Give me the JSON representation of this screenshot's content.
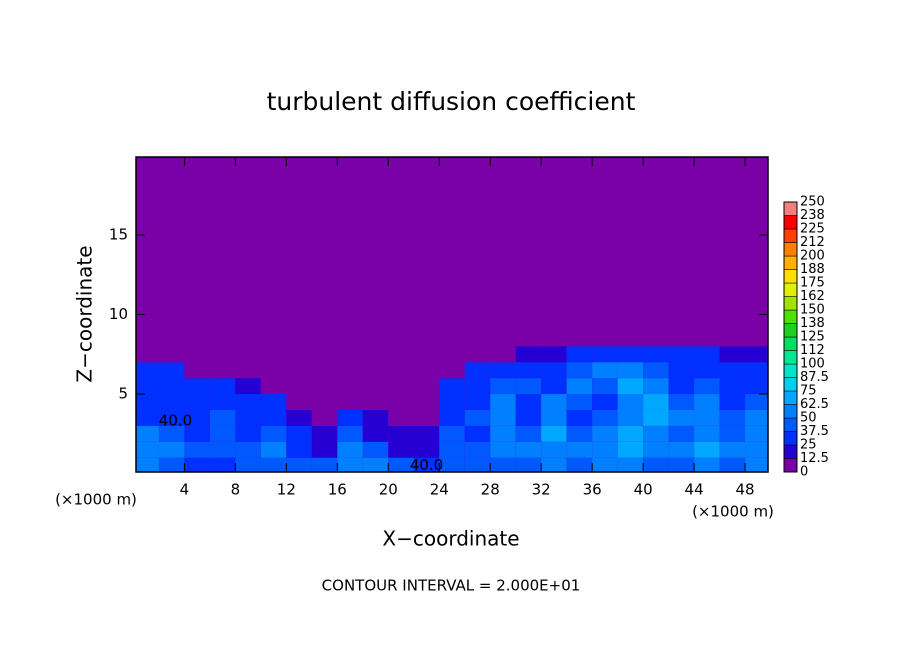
{
  "chart_data": {
    "type": "contour",
    "title": "turbulent diffusion coefficient",
    "xlabel": "X−coordinate",
    "ylabel": "Z−coordinate",
    "x_unit_label": "(×1000 m)",
    "note": "CONTOUR INTERVAL = 2.000E+01",
    "xlim": [
      0.2,
      49.8
    ],
    "ylim": [
      0.1,
      19.9
    ],
    "xticks": [
      4,
      8,
      12,
      16,
      20,
      24,
      28,
      32,
      36,
      40,
      44,
      48
    ],
    "yticks": [
      5,
      10,
      15
    ],
    "x": [
      1,
      3,
      5,
      7,
      9,
      11,
      13,
      15,
      17,
      19,
      21,
      23,
      25,
      27,
      29,
      31,
      33,
      35,
      37,
      39,
      41,
      43,
      45,
      47,
      49
    ],
    "y": [
      0.5,
      1.5,
      2.5,
      3.5,
      4.5,
      5.5,
      6.5,
      7.5
    ],
    "z": [
      [
        60,
        45,
        35,
        35,
        40,
        45,
        40,
        40,
        50,
        55,
        45,
        30,
        40,
        45,
        45,
        40,
        50,
        45,
        55,
        50,
        45,
        40,
        55,
        45,
        50
      ],
      [
        55,
        60,
        40,
        40,
        45,
        50,
        35,
        20,
        55,
        40,
        20,
        20,
        45,
        40,
        55,
        50,
        55,
        50,
        60,
        65,
        55,
        50,
        65,
        50,
        60
      ],
      [
        50,
        40,
        35,
        45,
        35,
        40,
        30,
        15,
        45,
        20,
        15,
        15,
        40,
        35,
        60,
        40,
        65,
        45,
        55,
        70,
        60,
        45,
        60,
        45,
        55
      ],
      [
        35,
        30,
        25,
        40,
        30,
        30,
        20,
        10,
        30,
        15,
        10,
        10,
        35,
        40,
        55,
        35,
        60,
        35,
        45,
        55,
        65,
        50,
        55,
        40,
        50
      ],
      [
        30,
        35,
        30,
        30,
        25,
        25,
        10,
        5,
        5,
        10,
        5,
        10,
        30,
        30,
        55,
        35,
        50,
        40,
        35,
        60,
        70,
        40,
        50,
        35,
        40
      ],
      [
        35,
        30,
        30,
        25,
        20,
        5,
        5,
        0,
        0,
        0,
        0,
        5,
        25,
        35,
        40,
        45,
        30,
        60,
        45,
        65,
        55,
        35,
        40,
        30,
        35
      ],
      [
        30,
        25,
        10,
        5,
        0,
        0,
        0,
        0,
        0,
        0,
        0,
        0,
        10,
        25,
        30,
        30,
        35,
        45,
        55,
        60,
        40,
        35,
        30,
        30,
        30
      ],
      [
        0,
        0,
        0,
        0,
        0,
        0,
        0,
        0,
        0,
        0,
        0,
        0,
        0,
        5,
        10,
        15,
        20,
        25,
        30,
        30,
        30,
        25,
        25,
        20,
        20
      ]
    ],
    "contour_labels": [
      {
        "x": 3.3,
        "y": 3.3,
        "label": "40.0"
      },
      {
        "x": 23.0,
        "y": 0.5,
        "label": "40.0"
      }
    ],
    "colorbar": {
      "levels": [
        0,
        12.5,
        25,
        37.5,
        50,
        62.5,
        75,
        87.5,
        100,
        112,
        125,
        138,
        150,
        162,
        175,
        188,
        200,
        212,
        225,
        238,
        250
      ],
      "colors": [
        "#7a00a8",
        "#2400d4",
        "#0030ff",
        "#0058ff",
        "#0080ff",
        "#00a8ff",
        "#00d0f0",
        "#00e4c8",
        "#00e894",
        "#00e060",
        "#20d020",
        "#50e000",
        "#a0e400",
        "#e0f000",
        "#ffe000",
        "#ffb000",
        "#ff8000",
        "#ff4000",
        "#ff0000",
        "#f08080"
      ]
    }
  }
}
